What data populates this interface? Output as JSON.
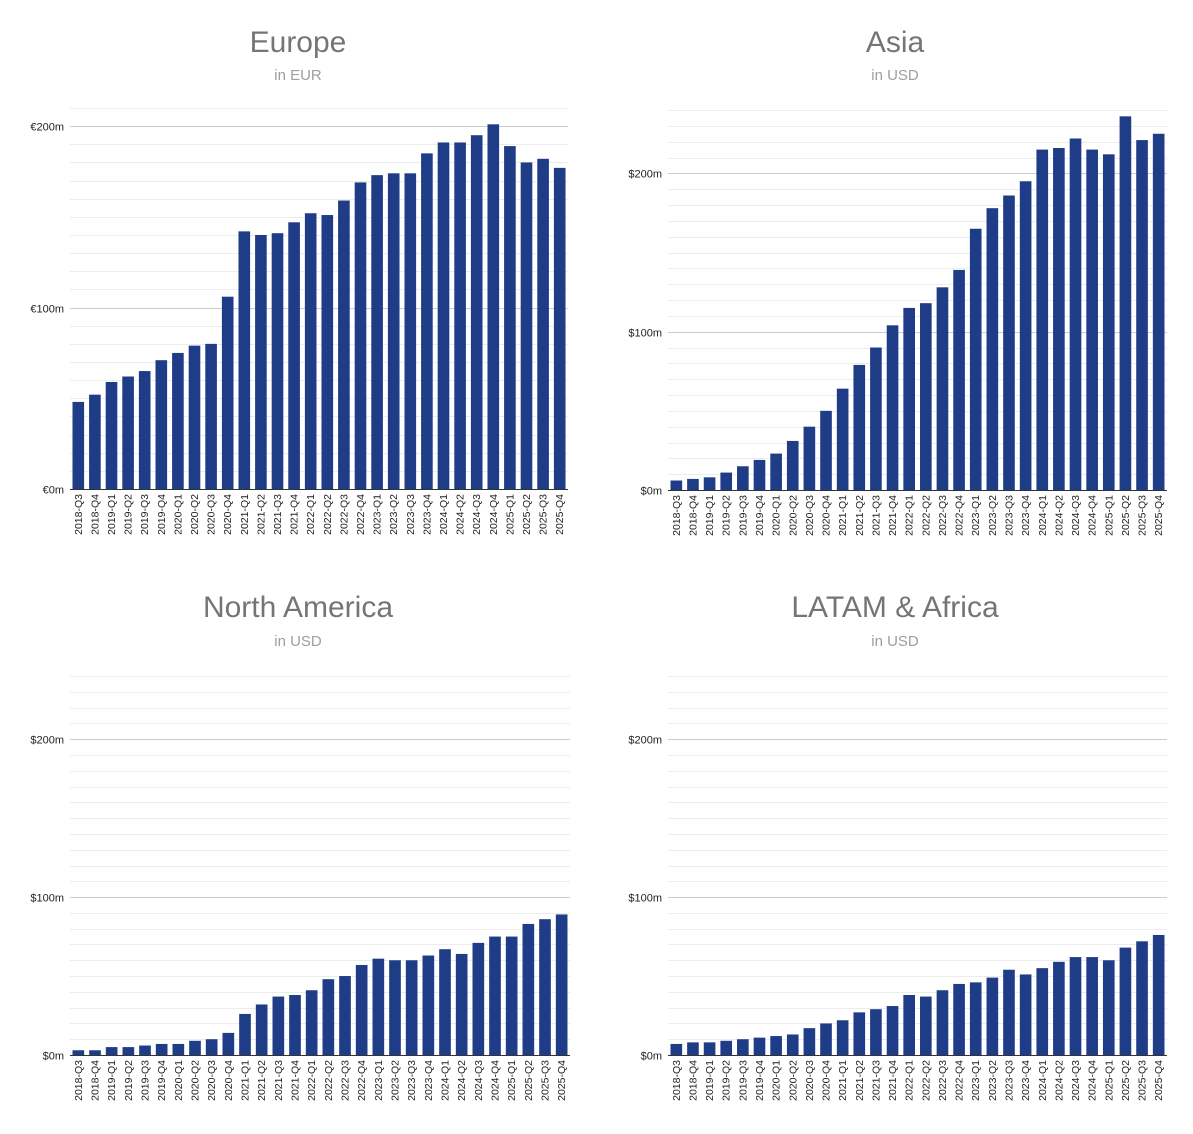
{
  "colors": {
    "bar": "#1f3d87",
    "title": "#757575",
    "subtitle": "#9e9e9e"
  },
  "categories": [
    "2018-Q3",
    "2018-Q4",
    "2019-Q1",
    "2019-Q2",
    "2019-Q3",
    "2019-Q4",
    "2020-Q1",
    "2020-Q2",
    "2020-Q3",
    "2020-Q4",
    "2021-Q1",
    "2021-Q2",
    "2021-Q3",
    "2021-Q4",
    "2022-Q1",
    "2022-Q2",
    "2022-Q3",
    "2022-Q4",
    "2023-Q1",
    "2023-Q2",
    "2023-Q3",
    "2023-Q4",
    "2024-Q1",
    "2024-Q2",
    "2024-Q3",
    "2024-Q4",
    "2025-Q1",
    "2025-Q2",
    "2025-Q3",
    "2025-Q4"
  ],
  "chart_data": [
    {
      "id": "europe",
      "type": "bar",
      "title": "Europe",
      "subtitle": "in EUR",
      "ylim": [
        0,
        210
      ],
      "yticks": [
        {
          "value": 0,
          "label": "€0m"
        },
        {
          "value": 100,
          "label": "€100m"
        },
        {
          "value": 200,
          "label": "€200m"
        }
      ],
      "grid": true,
      "values": [
        48,
        52,
        59,
        62,
        65,
        71,
        75,
        79,
        80,
        106,
        142,
        140,
        141,
        147,
        152,
        151,
        159,
        169,
        173,
        174,
        174,
        185,
        191,
        191,
        195,
        201,
        189,
        180,
        182,
        177
      ]
    },
    {
      "id": "asia",
      "type": "bar",
      "title": "Asia",
      "subtitle": "in USD",
      "ylim": [
        0,
        240
      ],
      "yticks": [
        {
          "value": 0,
          "label": "$0m"
        },
        {
          "value": 100,
          "label": "$100m"
        },
        {
          "value": 200,
          "label": "$200m"
        }
      ],
      "grid": true,
      "values": [
        6,
        7,
        8,
        11,
        15,
        19,
        23,
        31,
        40,
        50,
        64,
        79,
        90,
        104,
        115,
        118,
        128,
        139,
        165,
        178,
        186,
        195,
        215,
        216,
        222,
        215,
        212,
        236,
        221,
        225
      ]
    },
    {
      "id": "north-america",
      "type": "bar",
      "title": "North America",
      "subtitle": "in USD",
      "ylim": [
        0,
        240
      ],
      "yticks": [
        {
          "value": 0,
          "label": "$0m"
        },
        {
          "value": 100,
          "label": "$100m"
        },
        {
          "value": 200,
          "label": "$200m"
        }
      ],
      "grid": true,
      "values": [
        3,
        3,
        5,
        5,
        6,
        7,
        7,
        9,
        10,
        14,
        26,
        32,
        37,
        38,
        41,
        48,
        50,
        57,
        61,
        60,
        60,
        63,
        67,
        64,
        71,
        75,
        75,
        83,
        86,
        89
      ]
    },
    {
      "id": "latam-africa",
      "type": "bar",
      "title": "LATAM & Africa",
      "subtitle": "in USD",
      "ylim": [
        0,
        240
      ],
      "yticks": [
        {
          "value": 0,
          "label": "$0m"
        },
        {
          "value": 100,
          "label": "$100m"
        },
        {
          "value": 200,
          "label": "$200m"
        }
      ],
      "grid": true,
      "values": [
        7,
        8,
        8,
        9,
        10,
        11,
        12,
        13,
        17,
        20,
        22,
        27,
        29,
        31,
        38,
        37,
        41,
        45,
        46,
        49,
        54,
        51,
        55,
        59,
        62,
        62,
        60,
        68,
        72,
        76
      ]
    }
  ]
}
